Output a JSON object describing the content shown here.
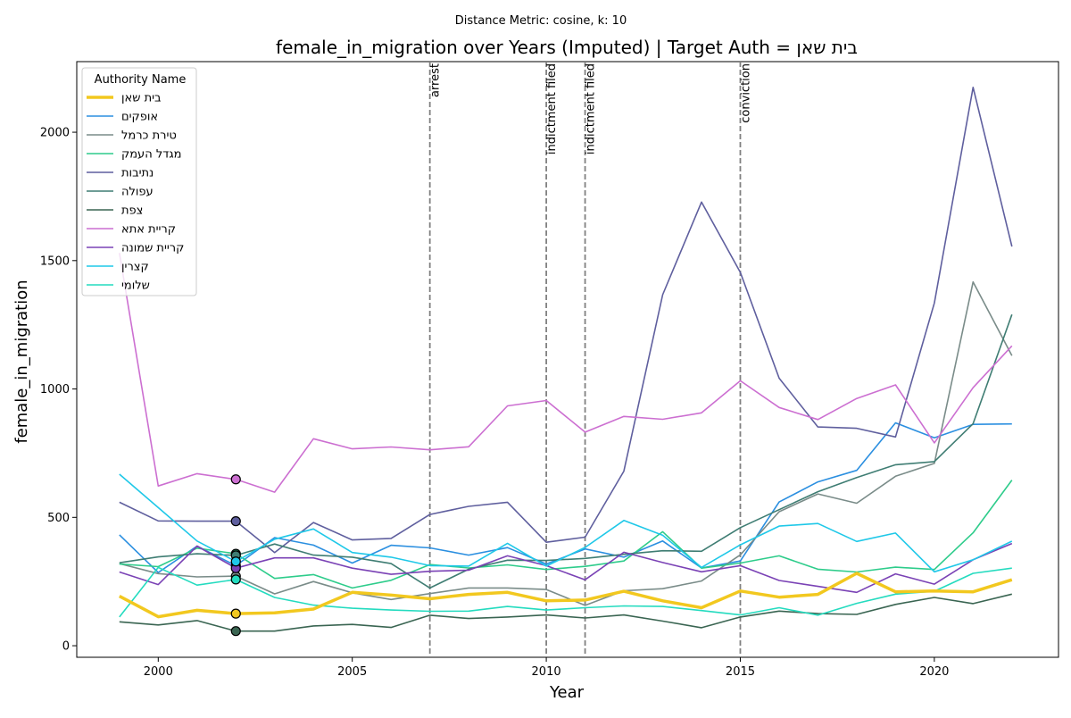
{
  "chart_data": {
    "type": "line",
    "suptitle": "Distance Metric: cosine, k: 10",
    "title": "female_in_migration over Years (Imputed) | Target Auth = בית שאן",
    "xlabel": "Year",
    "ylabel": "female_in_migration",
    "xlim": [
      1997.9,
      2023.2
    ],
    "ylim": [
      -45,
      2275
    ],
    "x_ticks": [
      2000,
      2005,
      2010,
      2015,
      2020
    ],
    "y_ticks": [
      0,
      500,
      1000,
      1500,
      2000
    ],
    "years": [
      1999,
      2000,
      2001,
      2002,
      2003,
      2004,
      2005,
      2006,
      2007,
      2008,
      2009,
      2010,
      2011,
      2012,
      2013,
      2014,
      2015,
      2016,
      2017,
      2018,
      2019,
      2020,
      2021,
      2022
    ],
    "legend_title": "Authority Name",
    "legend_placement": "upper-left",
    "events": [
      {
        "year": 2007,
        "label": "arrest"
      },
      {
        "year": 2010,
        "label": "indictment filed"
      },
      {
        "year": 2011,
        "label": "indictment filed"
      },
      {
        "year": 2015,
        "label": "conviction"
      }
    ],
    "imputed_year": 2002,
    "series": [
      {
        "name": "בית שאן",
        "color": "#f2c81f",
        "target": true,
        "values": [
          193,
          113,
          138,
          125,
          128,
          143,
          208,
          197,
          183,
          200,
          208,
          175,
          178,
          212,
          175,
          148,
          213,
          189,
          200,
          282,
          210,
          213,
          210,
          257
        ]
      },
      {
        "name": "אופקים",
        "color": "#2b8fe0",
        "values": [
          432,
          285,
          388,
          312,
          421,
          392,
          322,
          391,
          381,
          353,
          382,
          318,
          377,
          345,
          408,
          303,
          330,
          560,
          638,
          683,
          868,
          810,
          862,
          864
        ]
      },
      {
        "name": "טירת כרמל",
        "color": "#7a8c89",
        "values": [
          320,
          281,
          268,
          271,
          202,
          250,
          206,
          180,
          203,
          225,
          225,
          219,
          157,
          214,
          222,
          252,
          354,
          522,
          591,
          555,
          660,
          710,
          1417,
          1130
        ]
      },
      {
        "name": "מגדל העמק",
        "color": "#2ecc8b",
        "values": [
          318,
          308,
          380,
          358,
          262,
          277,
          225,
          255,
          316,
          303,
          315,
          297,
          309,
          330,
          444,
          302,
          322,
          350,
          298,
          287,
          306,
          297,
          440,
          645
        ]
      },
      {
        "name": "נתיבות",
        "color": "#5f5f9e",
        "values": [
          559,
          486,
          485,
          485,
          363,
          480,
          412,
          418,
          511,
          543,
          559,
          403,
          423,
          680,
          1367,
          1728,
          1454,
          1042,
          852,
          847,
          813,
          1335,
          2175,
          1555
        ]
      },
      {
        "name": "עפולה",
        "color": "#3f7d73",
        "values": [
          323,
          346,
          358,
          352,
          396,
          353,
          345,
          320,
          225,
          298,
          333,
          332,
          340,
          356,
          370,
          368,
          460,
          530,
          600,
          655,
          705,
          717,
          865,
          1290
        ]
      },
      {
        "name": "צפת",
        "color": "#3a6552",
        "values": [
          93,
          81,
          98,
          57,
          57,
          77,
          83,
          71,
          119,
          106,
          112,
          120,
          108,
          120,
          96,
          70,
          112,
          135,
          125,
          122,
          161,
          188,
          164,
          201
        ]
      },
      {
        "name": "קריית אתא",
        "color": "#cc6fd1",
        "values": [
          1530,
          622,
          670,
          648,
          598,
          806,
          767,
          774,
          763,
          775,
          934,
          955,
          832,
          893,
          882,
          907,
          1032,
          928,
          881,
          963,
          1016,
          790,
          1005,
          1168
        ]
      },
      {
        "name": "קריית שמונה",
        "color": "#7a42b5",
        "values": [
          287,
          238,
          388,
          302,
          342,
          342,
          302,
          278,
          290,
          294,
          350,
          312,
          257,
          364,
          324,
          288,
          312,
          254,
          231,
          208,
          280,
          240,
          335,
          398
        ]
      },
      {
        "name": "קצרין",
        "color": "#1fc8e8",
        "values": [
          668,
          538,
          408,
          328,
          415,
          455,
          363,
          345,
          312,
          310,
          399,
          310,
          383,
          488,
          430,
          305,
          393,
          466,
          476,
          406,
          439,
          288,
          335,
          407
        ]
      },
      {
        "name": "שלומי",
        "color": "#24dbbf",
        "values": [
          112,
          305,
          236,
          258,
          188,
          158,
          146,
          139,
          134,
          135,
          153,
          139,
          148,
          155,
          153,
          137,
          120,
          148,
          119,
          165,
          201,
          212,
          282,
          302
        ]
      }
    ]
  }
}
